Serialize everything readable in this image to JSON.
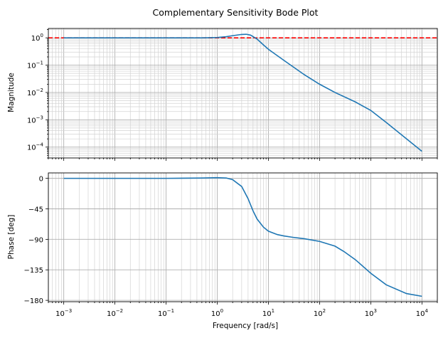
{
  "chart_data": [
    {
      "type": "line",
      "title": "Complementary Sensitivity Bode Plot",
      "xlabel": "",
      "ylabel": "Magnitude",
      "xscale": "log",
      "yscale": "log",
      "xlim": [
        0.0005,
        20000
      ],
      "ylim": [
        4e-05,
        2.2
      ],
      "grid": true,
      "x_ticks": [
        {
          "base": "10",
          "exp": "−3",
          "value": 0.001
        },
        {
          "base": "10",
          "exp": "−2",
          "value": 0.01
        },
        {
          "base": "10",
          "exp": "−1",
          "value": 0.1
        },
        {
          "base": "10",
          "exp": "0",
          "value": 1
        },
        {
          "base": "10",
          "exp": "1",
          "value": 10
        },
        {
          "base": "10",
          "exp": "2",
          "value": 100
        },
        {
          "base": "10",
          "exp": "3",
          "value": 1000
        },
        {
          "base": "10",
          "exp": "4",
          "value": 10000
        }
      ],
      "y_ticks": [
        {
          "base": "10",
          "exp": "0",
          "value": 1
        },
        {
          "base": "10",
          "exp": "−1",
          "value": 0.1
        },
        {
          "base": "10",
          "exp": "−2",
          "value": 0.01
        },
        {
          "base": "10",
          "exp": "−3",
          "value": 0.001
        },
        {
          "base": "10",
          "exp": "−4",
          "value": 0.0001
        }
      ],
      "reference_line": {
        "y": 1,
        "style": "dashed",
        "color": "#ff0000"
      },
      "series": [
        {
          "color": "#1f77b4",
          "x": [
            0.001,
            0.01,
            0.1,
            0.5,
            1,
            1.5,
            2,
            3,
            3.7,
            4.5,
            6,
            8,
            10,
            20,
            50,
            100,
            200,
            500,
            1000,
            2000,
            5000,
            10000
          ],
          "y": [
            1.0,
            1.0,
            1.0,
            1.0,
            1.03,
            1.1,
            1.2,
            1.33,
            1.35,
            1.25,
            0.9,
            0.55,
            0.38,
            0.15,
            0.045,
            0.02,
            0.01,
            0.0045,
            0.0022,
            0.0008,
            0.0002,
            7e-05
          ]
        }
      ]
    },
    {
      "type": "line",
      "title": "",
      "xlabel": "Frequency [rad/s]",
      "ylabel": "Phase [deg]",
      "xscale": "log",
      "xlim": [
        0.0005,
        20000
      ],
      "ylim": [
        -182,
        8
      ],
      "grid": true,
      "x_ticks": [
        {
          "base": "10",
          "exp": "−3",
          "value": 0.001
        },
        {
          "base": "10",
          "exp": "−2",
          "value": 0.01
        },
        {
          "base": "10",
          "exp": "−1",
          "value": 0.1
        },
        {
          "base": "10",
          "exp": "0",
          "value": 1
        },
        {
          "base": "10",
          "exp": "1",
          "value": 10
        },
        {
          "base": "10",
          "exp": "2",
          "value": 100
        },
        {
          "base": "10",
          "exp": "3",
          "value": 1000
        },
        {
          "base": "10",
          "exp": "4",
          "value": 10000
        }
      ],
      "y_ticks": [
        {
          "label": "0",
          "value": 0
        },
        {
          "label": "−45",
          "value": -45
        },
        {
          "label": "−90",
          "value": -90
        },
        {
          "label": "−135",
          "value": -135
        },
        {
          "label": "−180",
          "value": -180
        }
      ],
      "series": [
        {
          "color": "#1f77b4",
          "x": [
            0.001,
            0.01,
            0.1,
            0.5,
            1,
            1.5,
            2,
            3,
            4,
            5,
            6,
            8,
            10,
            15,
            20,
            30,
            50,
            100,
            200,
            300,
            500,
            1000,
            2000,
            5000,
            10000
          ],
          "y": [
            0,
            0,
            0,
            0.5,
            1,
            0.5,
            -2,
            -12,
            -30,
            -48,
            -60,
            -72,
            -78,
            -83,
            -85,
            -87,
            -89,
            -93,
            -100,
            -108,
            -120,
            -140,
            -157,
            -170,
            -174
          ]
        }
      ]
    }
  ]
}
